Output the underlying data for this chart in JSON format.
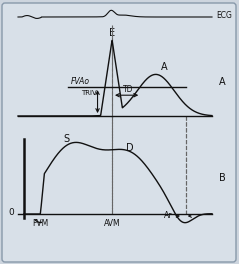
{
  "bg_color": "#cdd5de",
  "border_color": "#9aa5b0",
  "line_color": "#111111",
  "dashed_color": "#666666",
  "ecg_label": "ECG",
  "label_A_panel": "A",
  "label_B_panel": "B",
  "label_O": "0",
  "label_E": "E",
  "label_A_peak": "A",
  "label_S": "S",
  "label_D": "D",
  "label_FVAo": "FVAo",
  "label_TRIV": "TRIV",
  "label_TD": "TD",
  "label_FVM": "FVM",
  "label_AVM": "AVM",
  "label_Ar": "Ar",
  "fig_w": 2.39,
  "fig_h": 2.64,
  "dpi": 100
}
